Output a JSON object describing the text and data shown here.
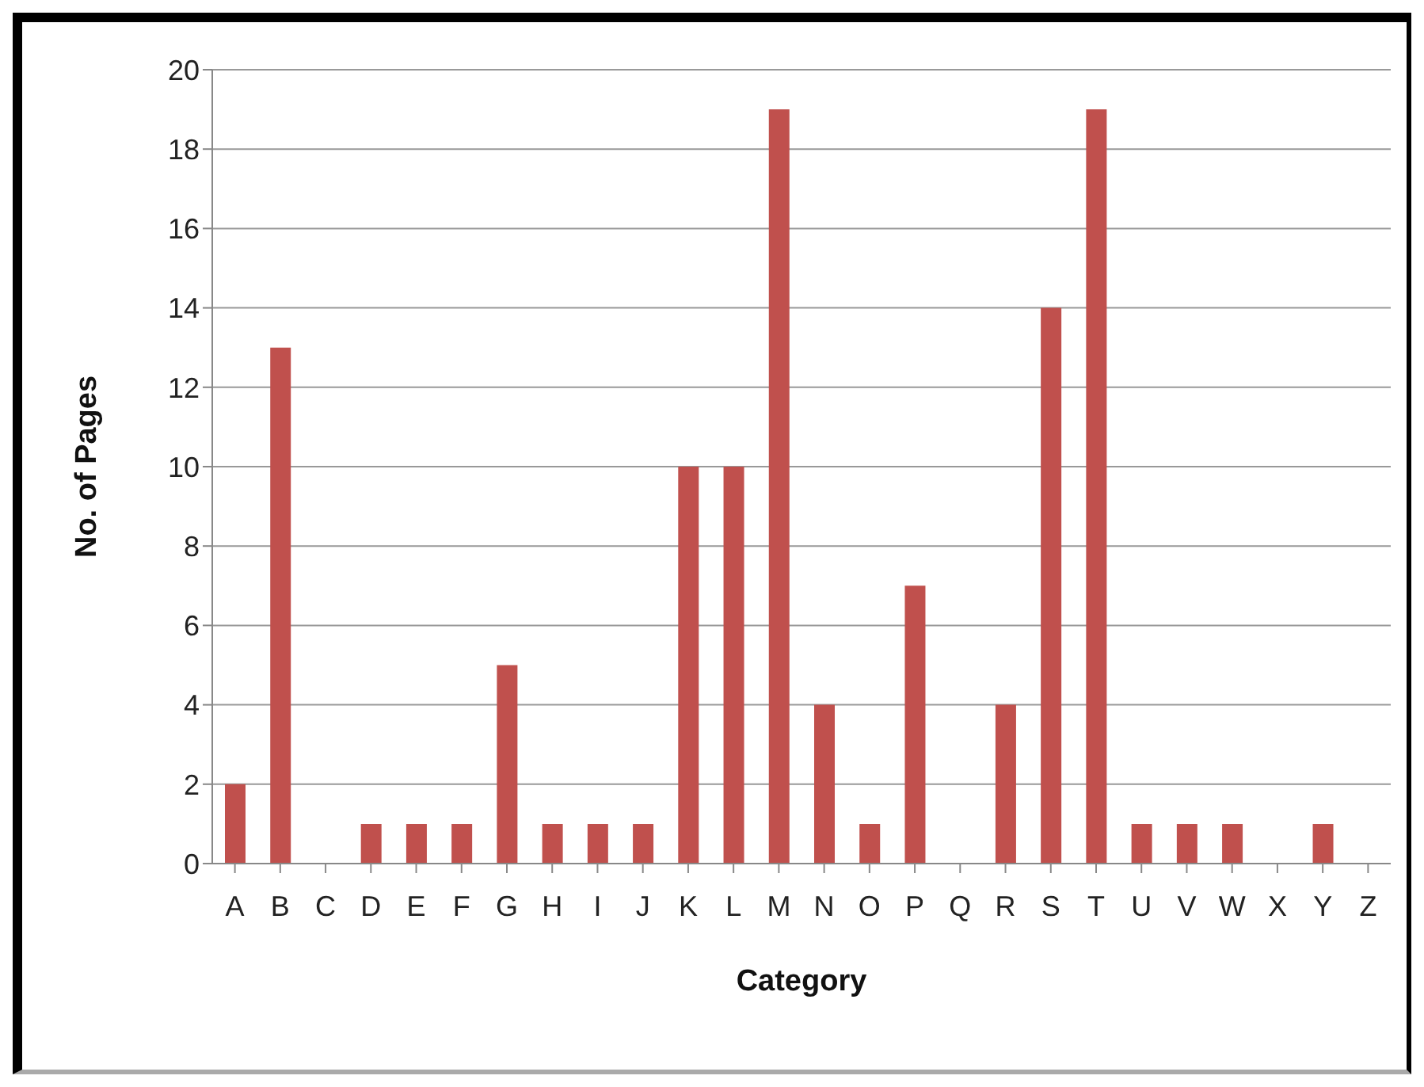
{
  "chart_data": {
    "type": "bar",
    "xlabel": "Category",
    "ylabel": "No. of Pages",
    "categories": [
      "A",
      "B",
      "C",
      "D",
      "E",
      "F",
      "G",
      "H",
      "I",
      "J",
      "K",
      "L",
      "M",
      "N",
      "O",
      "P",
      "Q",
      "R",
      "S",
      "T",
      "U",
      "V",
      "W",
      "X",
      "Y",
      "Z"
    ],
    "values": [
      2,
      13,
      0,
      1,
      1,
      1,
      5,
      1,
      1,
      1,
      10,
      10,
      19,
      4,
      1,
      7,
      0,
      4,
      14,
      19,
      1,
      1,
      1,
      0,
      1,
      0
    ],
    "color": "#c0504d",
    "ylim": [
      0,
      20
    ],
    "yticks": [
      0,
      2,
      4,
      6,
      8,
      10,
      12,
      14,
      16,
      18,
      20
    ],
    "grid": "y",
    "legend": false
  }
}
